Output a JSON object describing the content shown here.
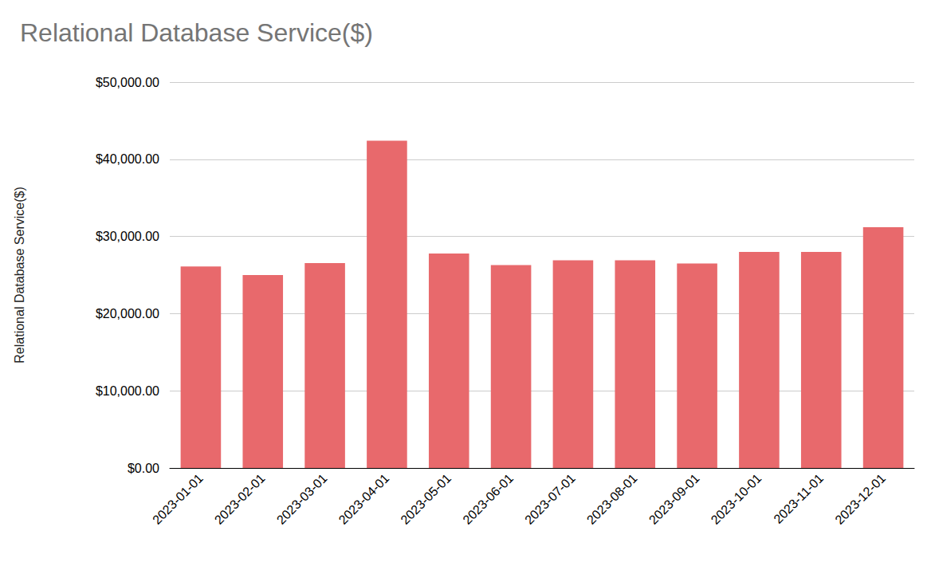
{
  "chart_data": {
    "type": "bar",
    "title": "Relational Database Service($)",
    "ylabel": "Relational Database Service($)",
    "categories": [
      "2023-01-01",
      "2023-02-01",
      "2023-03-01",
      "2023-04-01",
      "2023-05-01",
      "2023-06-01",
      "2023-07-01",
      "2023-08-01",
      "2023-09-01",
      "2023-10-01",
      "2023-11-01",
      "2023-12-01"
    ],
    "values": [
      26100,
      25000,
      26550,
      42400,
      27800,
      26300,
      26900,
      26900,
      26500,
      28000,
      28000,
      31200
    ],
    "color": "#e8696c",
    "ylim": [
      0,
      50000
    ],
    "yticks": [
      {
        "value": 0,
        "label": "$0.00"
      },
      {
        "value": 10000,
        "label": "$10,000.00"
      },
      {
        "value": 20000,
        "label": "$20,000.00"
      },
      {
        "value": 30000,
        "label": "$30,000.00"
      },
      {
        "value": 40000,
        "label": "$40,000.00"
      },
      {
        "value": 50000,
        "label": "$50,000.00"
      }
    ],
    "grid": true
  }
}
